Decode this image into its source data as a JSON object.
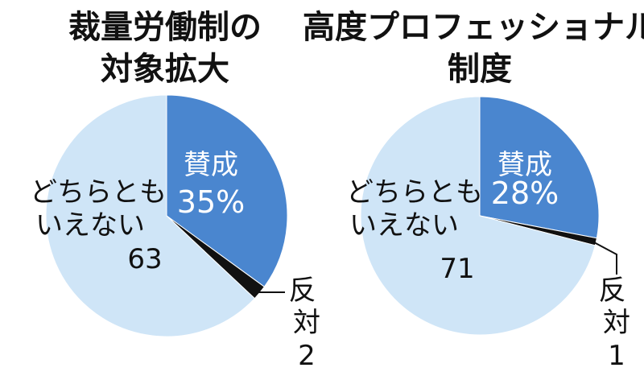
{
  "chart_data": [
    {
      "type": "pie",
      "title_lines": [
        "裁量労働制の",
        "対象拡大"
      ],
      "slices": [
        {
          "label": "賛成",
          "value": 35,
          "value_text": "35%",
          "color": "#4a86cf"
        },
        {
          "label": "反対",
          "value": 2,
          "value_text": "2",
          "color": "#111111"
        },
        {
          "label_lines": [
            "どちらとも",
            "いえない"
          ],
          "value": 63,
          "value_text": "63",
          "color": "#cfe5f7"
        }
      ]
    },
    {
      "type": "pie",
      "title_lines": [
        "高度プロフェッショナル",
        "制度"
      ],
      "slices": [
        {
          "label": "賛成",
          "value": 28,
          "value_text": "28%",
          "color": "#4a86cf"
        },
        {
          "label": "反対",
          "value": 1,
          "value_text": "1",
          "color": "#111111"
        },
        {
          "label_lines": [
            "どちらとも",
            "いえない"
          ],
          "value": 71,
          "value_text": "71",
          "color": "#cfe5f7"
        }
      ]
    }
  ],
  "colors": {
    "agree": "#4a86cf",
    "disagree": "#111111",
    "neither": "#cfe5f7",
    "edge": "#ffffff"
  }
}
